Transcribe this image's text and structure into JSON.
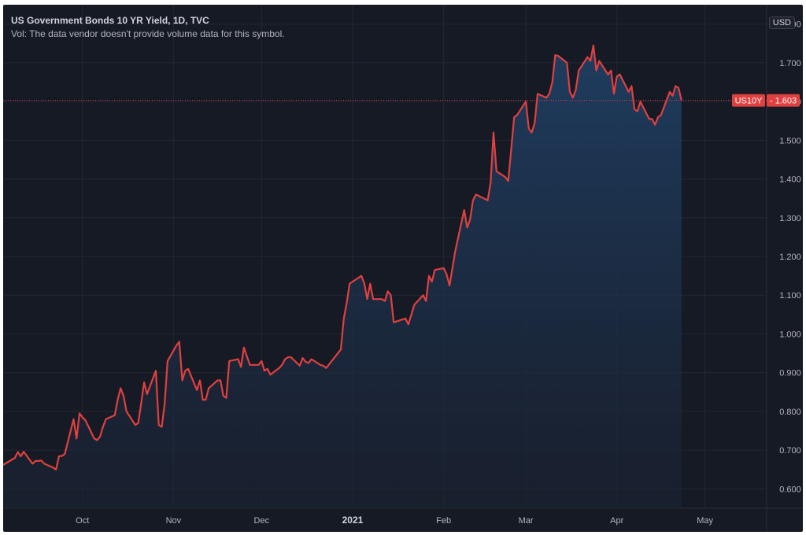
{
  "legend": {
    "title": "US Government Bonds 10 YR Yield, 1D, TVC",
    "volume_note": "Vol: The data vendor doesn't provide volume data for this symbol."
  },
  "currency": "USD",
  "price_label": {
    "symbol": "US10Y",
    "value": "1.603"
  },
  "colors": {
    "background": "#161a25",
    "line": "#e0403f",
    "fill_top": "#1e3a5c",
    "grid": "#2a2e39",
    "label": "#e0403f"
  },
  "chart_data": {
    "type": "area",
    "ylim": [
      0.55,
      1.85
    ],
    "y_ticks": [
      "0.600",
      "0.700",
      "0.800",
      "0.900",
      "1.000",
      "1.100",
      "1.200",
      "1.300",
      "1.400",
      "1.500",
      "1.600",
      "1.700",
      "1.800"
    ],
    "x_ticks": [
      {
        "label": "Oct",
        "date": "2020-10-01"
      },
      {
        "label": "Nov",
        "date": "2020-11-01"
      },
      {
        "label": "Dec",
        "date": "2020-12-01"
      },
      {
        "label": "2021",
        "date": "2021-01-01",
        "bold": true
      },
      {
        "label": "Feb",
        "date": "2021-02-01"
      },
      {
        "label": "Mar",
        "date": "2021-03-01"
      },
      {
        "label": "Apr",
        "date": "2021-04-01"
      },
      {
        "label": "May",
        "date": "2021-05-01"
      }
    ],
    "xlim": [
      "2020-09-04",
      "2021-05-22"
    ],
    "last_value": 1.603,
    "series": [
      {
        "points": [
          [
            "2020-09-04",
            0.662
          ],
          [
            "2020-09-08",
            0.68
          ],
          [
            "2020-09-09",
            0.695
          ],
          [
            "2020-09-10",
            0.684
          ],
          [
            "2020-09-11",
            0.696
          ],
          [
            "2020-09-14",
            0.665
          ],
          [
            "2020-09-15",
            0.672
          ],
          [
            "2020-09-16",
            0.672
          ],
          [
            "2020-09-17",
            0.673
          ],
          [
            "2020-09-18",
            0.665
          ],
          [
            "2020-09-21",
            0.655
          ],
          [
            "2020-09-22",
            0.65
          ],
          [
            "2020-09-23",
            0.684
          ],
          [
            "2020-09-24",
            0.685
          ],
          [
            "2020-09-25",
            0.69
          ],
          [
            "2020-09-28",
            0.78
          ],
          [
            "2020-09-29",
            0.73
          ],
          [
            "2020-09-30",
            0.795
          ],
          [
            "2020-10-01",
            0.785
          ],
          [
            "2020-10-02",
            0.777
          ],
          [
            "2020-10-05",
            0.73
          ],
          [
            "2020-10-06",
            0.726
          ],
          [
            "2020-10-07",
            0.735
          ],
          [
            "2020-10-08",
            0.76
          ],
          [
            "2020-10-09",
            0.78
          ],
          [
            "2020-10-12",
            0.79
          ],
          [
            "2020-10-13",
            0.83
          ],
          [
            "2020-10-14",
            0.86
          ],
          [
            "2020-10-15",
            0.84
          ],
          [
            "2020-10-16",
            0.8
          ],
          [
            "2020-10-19",
            0.765
          ],
          [
            "2020-10-20",
            0.77
          ],
          [
            "2020-10-21",
            0.82
          ],
          [
            "2020-10-22",
            0.875
          ],
          [
            "2020-10-23",
            0.845
          ],
          [
            "2020-10-26",
            0.905
          ],
          [
            "2020-10-27",
            0.765
          ],
          [
            "2020-10-28",
            0.76
          ],
          [
            "2020-10-29",
            0.82
          ],
          [
            "2020-10-30",
            0.93
          ],
          [
            "2020-11-02",
            0.97
          ],
          [
            "2020-11-03",
            0.98
          ],
          [
            "2020-11-04",
            0.88
          ],
          [
            "2020-11-05",
            0.905
          ],
          [
            "2020-11-06",
            0.91
          ],
          [
            "2020-11-09",
            0.855
          ],
          [
            "2020-11-10",
            0.88
          ],
          [
            "2020-11-11",
            0.83
          ],
          [
            "2020-11-12",
            0.83
          ],
          [
            "2020-11-13",
            0.86
          ],
          [
            "2020-11-16",
            0.88
          ],
          [
            "2020-11-17",
            0.88
          ],
          [
            "2020-11-18",
            0.84
          ],
          [
            "2020-11-19",
            0.835
          ],
          [
            "2020-11-20",
            0.93
          ],
          [
            "2020-11-23",
            0.935
          ],
          [
            "2020-11-24",
            0.915
          ],
          [
            "2020-11-25",
            0.965
          ],
          [
            "2020-11-27",
            0.92
          ],
          [
            "2020-11-30",
            0.92
          ],
          [
            "2020-12-01",
            0.93
          ],
          [
            "2020-12-02",
            0.905
          ],
          [
            "2020-12-03",
            0.91
          ],
          [
            "2020-12-04",
            0.895
          ],
          [
            "2020-12-07",
            0.912
          ],
          [
            "2020-12-08",
            0.92
          ],
          [
            "2020-12-09",
            0.935
          ],
          [
            "2020-12-10",
            0.94
          ],
          [
            "2020-12-11",
            0.94
          ],
          [
            "2020-12-14",
            0.918
          ],
          [
            "2020-12-15",
            0.938
          ],
          [
            "2020-12-16",
            0.928
          ],
          [
            "2020-12-17",
            0.925
          ],
          [
            "2020-12-18",
            0.935
          ],
          [
            "2020-12-21",
            0.92
          ],
          [
            "2020-12-22",
            0.918
          ],
          [
            "2020-12-23",
            0.912
          ],
          [
            "2020-12-28",
            0.96
          ],
          [
            "2020-12-29",
            1.04
          ],
          [
            "2020-12-30",
            1.08
          ],
          [
            "2020-12-31",
            1.13
          ],
          [
            "2021-01-04",
            1.15
          ],
          [
            "2021-01-05",
            1.13
          ],
          [
            "2021-01-06",
            1.09
          ],
          [
            "2021-01-07",
            1.13
          ],
          [
            "2021-01-08",
            1.09
          ],
          [
            "2021-01-11",
            1.09
          ],
          [
            "2021-01-12",
            1.085
          ],
          [
            "2021-01-13",
            1.11
          ],
          [
            "2021-01-14",
            1.1
          ],
          [
            "2021-01-15",
            1.03
          ],
          [
            "2021-01-19",
            1.04
          ],
          [
            "2021-01-20",
            1.025
          ],
          [
            "2021-01-21",
            1.05
          ],
          [
            "2021-01-22",
            1.075
          ],
          [
            "2021-01-25",
            1.1
          ],
          [
            "2021-01-26",
            1.085
          ],
          [
            "2021-01-27",
            1.15
          ],
          [
            "2021-01-28",
            1.135
          ],
          [
            "2021-01-29",
            1.165
          ],
          [
            "2021-02-01",
            1.17
          ],
          [
            "2021-02-02",
            1.155
          ],
          [
            "2021-02-03",
            1.125
          ],
          [
            "2021-02-04",
            1.17
          ],
          [
            "2021-02-05",
            1.215
          ],
          [
            "2021-02-08",
            1.32
          ],
          [
            "2021-02-09",
            1.275
          ],
          [
            "2021-02-10",
            1.295
          ],
          [
            "2021-02-11",
            1.345
          ],
          [
            "2021-02-12",
            1.36
          ],
          [
            "2021-02-16",
            1.345
          ],
          [
            "2021-02-17",
            1.39
          ],
          [
            "2021-02-18",
            1.52
          ],
          [
            "2021-02-19",
            1.42
          ],
          [
            "2021-02-22",
            1.405
          ],
          [
            "2021-02-23",
            1.395
          ],
          [
            "2021-02-24",
            1.475
          ],
          [
            "2021-02-25",
            1.56
          ],
          [
            "2021-02-26",
            1.565
          ],
          [
            "2021-03-01",
            1.6
          ],
          [
            "2021-03-02",
            1.53
          ],
          [
            "2021-03-03",
            1.52
          ],
          [
            "2021-03-04",
            1.545
          ],
          [
            "2021-03-05",
            1.62
          ],
          [
            "2021-03-08",
            1.61
          ],
          [
            "2021-03-09",
            1.62
          ],
          [
            "2021-03-10",
            1.65
          ],
          [
            "2021-03-11",
            1.72
          ],
          [
            "2021-03-12",
            1.718
          ],
          [
            "2021-03-15",
            1.7
          ],
          [
            "2021-03-16",
            1.625
          ],
          [
            "2021-03-17",
            1.61
          ],
          [
            "2021-03-18",
            1.63
          ],
          [
            "2021-03-19",
            1.68
          ],
          [
            "2021-03-22",
            1.715
          ],
          [
            "2021-03-23",
            1.705
          ],
          [
            "2021-03-24",
            1.745
          ],
          [
            "2021-03-25",
            1.68
          ],
          [
            "2021-03-26",
            1.705
          ],
          [
            "2021-03-29",
            1.67
          ],
          [
            "2021-03-30",
            1.68
          ],
          [
            "2021-03-31",
            1.62
          ],
          [
            "2021-04-01",
            1.665
          ],
          [
            "2021-04-02",
            1.67
          ],
          [
            "2021-04-05",
            1.625
          ],
          [
            "2021-04-06",
            1.64
          ],
          [
            "2021-04-07",
            1.58
          ],
          [
            "2021-04-08",
            1.575
          ],
          [
            "2021-04-09",
            1.6
          ],
          [
            "2021-04-12",
            1.555
          ],
          [
            "2021-04-13",
            1.555
          ],
          [
            "2021-04-14",
            1.54
          ],
          [
            "2021-04-15",
            1.56
          ],
          [
            "2021-04-16",
            1.565
          ],
          [
            "2021-04-19",
            1.625
          ],
          [
            "2021-04-20",
            1.615
          ],
          [
            "2021-04-21",
            1.64
          ],
          [
            "2021-04-22",
            1.635
          ],
          [
            "2021-04-23",
            1.603
          ]
        ]
      }
    ]
  }
}
